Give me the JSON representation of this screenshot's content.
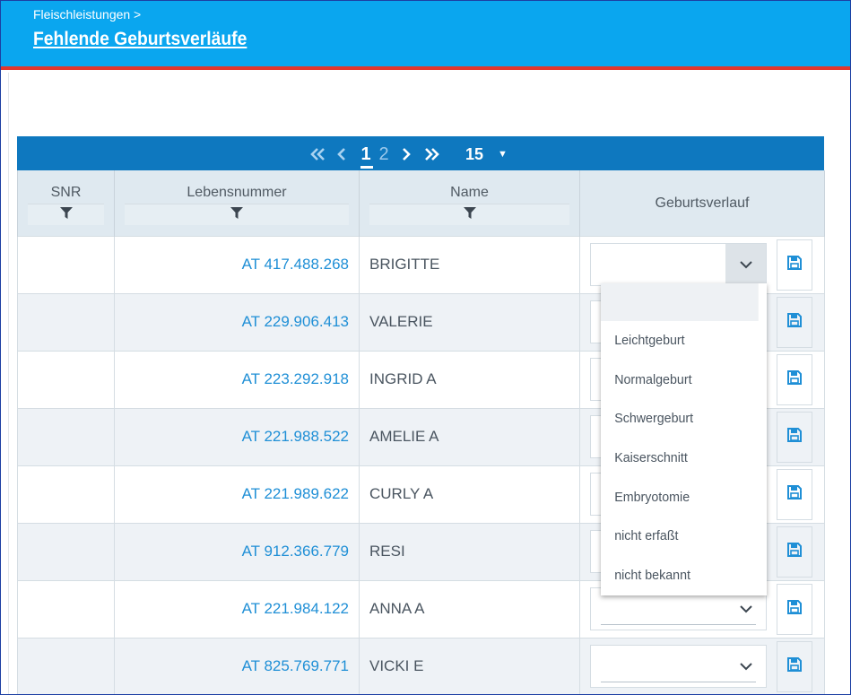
{
  "header": {
    "breadcrumb": "Fleischleistungen >",
    "title": "Fehlende Geburtsverläufe"
  },
  "pager": {
    "pages": [
      "1",
      "2"
    ],
    "current_page": "1",
    "page_size": "15"
  },
  "columns": {
    "snr": "SNR",
    "lebensnummer": "Lebensnummer",
    "name": "Name",
    "geburtsverlauf": "Geburtsverlauf"
  },
  "rows": [
    {
      "snr": "",
      "lebensnummer": "AT 417.488.268",
      "name": "BRIGITTE",
      "geburtsverlauf": ""
    },
    {
      "snr": "",
      "lebensnummer": "AT 229.906.413",
      "name": "VALERIE",
      "geburtsverlauf": ""
    },
    {
      "snr": "",
      "lebensnummer": "AT 223.292.918",
      "name": "INGRID A",
      "geburtsverlauf": ""
    },
    {
      "snr": "",
      "lebensnummer": "AT 221.988.522",
      "name": "AMELIE A",
      "geburtsverlauf": ""
    },
    {
      "snr": "",
      "lebensnummer": "AT 221.989.622",
      "name": "CURLY A",
      "geburtsverlauf": ""
    },
    {
      "snr": "",
      "lebensnummer": "AT 912.366.779",
      "name": "RESI",
      "geburtsverlauf": ""
    },
    {
      "snr": "",
      "lebensnummer": "AT 221.984.122",
      "name": "ANNA A",
      "geburtsverlauf": ""
    },
    {
      "snr": "",
      "lebensnummer": "AT 825.769.771",
      "name": "VICKI E",
      "geburtsverlauf": ""
    }
  ],
  "dropdown_options": [
    "",
    "Leichtgeburt",
    "Normalgeburt",
    "Schwergeburt",
    "Kaiserschnitt",
    "Embryotomie",
    "nicht erfaßt",
    "nicht bekannt"
  ],
  "icons": {
    "first_page": "double-chevron-left-icon",
    "prev_page": "chevron-left-icon",
    "next_page": "chevron-right-icon",
    "last_page": "double-chevron-right-icon",
    "filter": "filter-icon",
    "select_toggle": "chevron-down-icon",
    "save": "floppy-disk-icon"
  },
  "colors": {
    "topbar": "#0aa6ef",
    "accent_line": "#e2362d",
    "pager": "#0e78bf",
    "link": "#1f8fd6"
  }
}
